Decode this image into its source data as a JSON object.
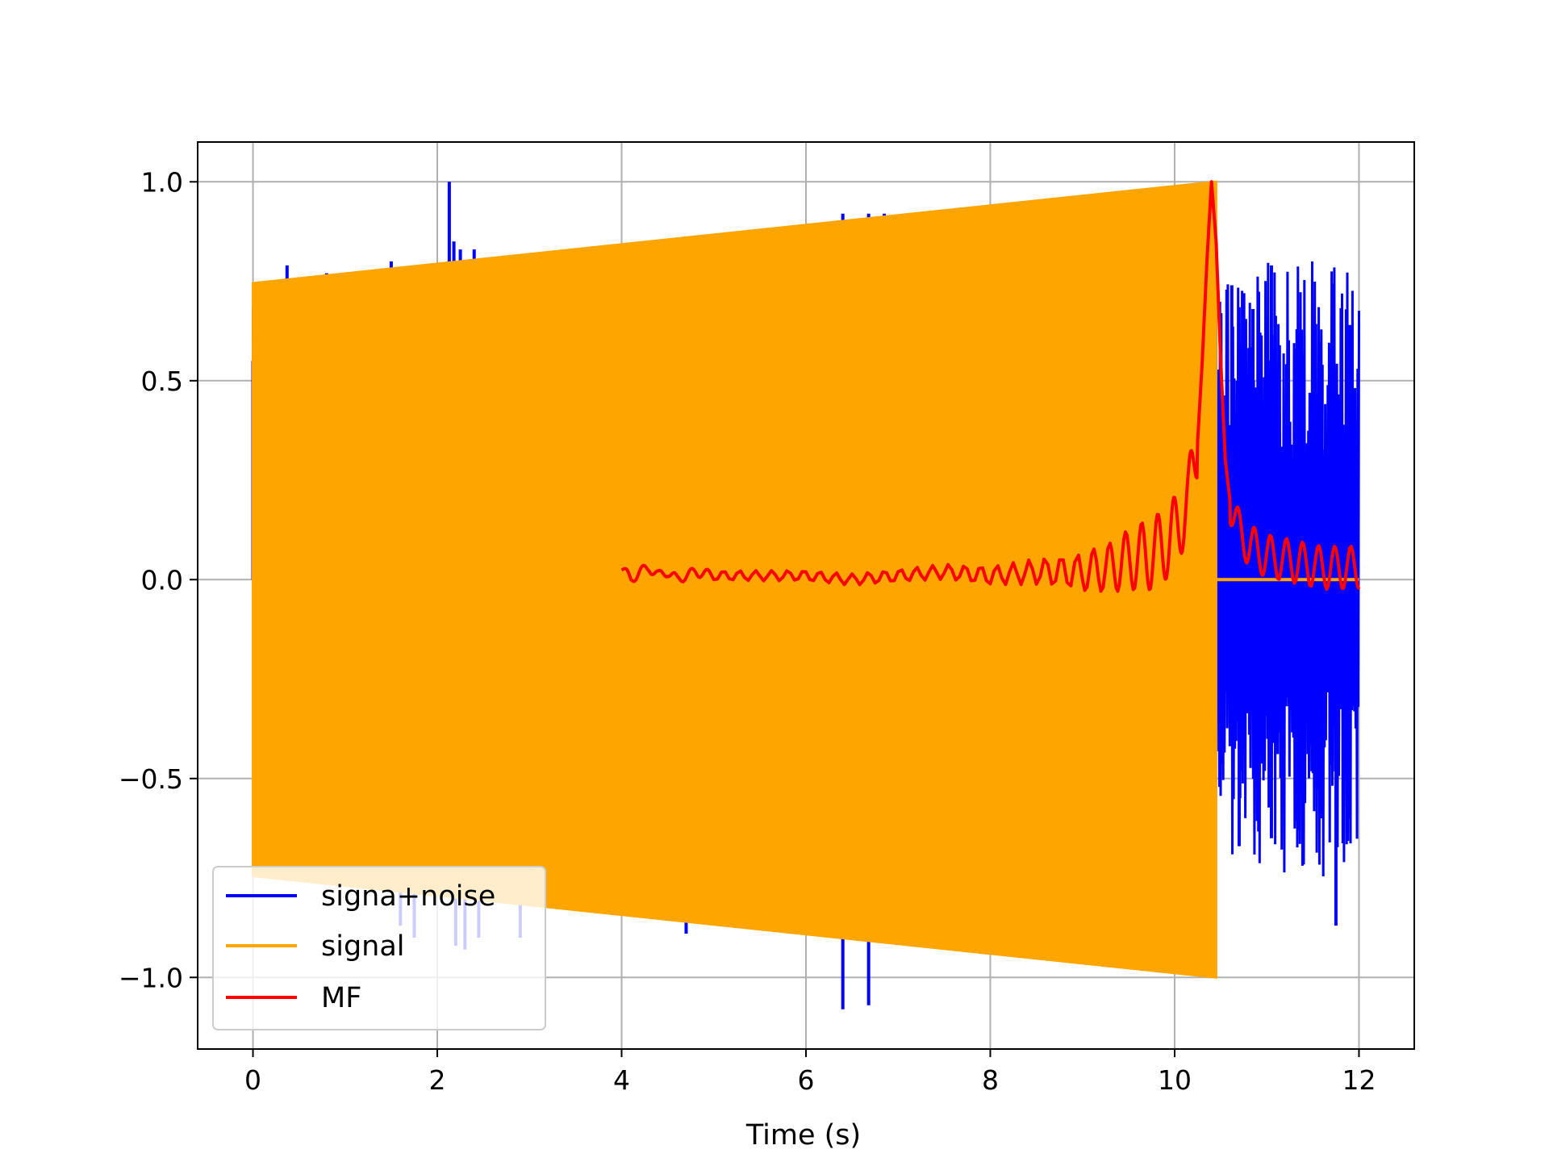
{
  "chart_data": {
    "type": "line",
    "title": "",
    "xlabel": "Time (s)",
    "ylabel": "",
    "xlim": [
      -0.6,
      12.6
    ],
    "ylim": [
      -1.18,
      1.1
    ],
    "x_ticks": [
      0,
      2,
      4,
      6,
      8,
      10,
      12
    ],
    "x_tick_labels": [
      "0",
      "2",
      "4",
      "6",
      "8",
      "10",
      "12"
    ],
    "y_ticks": [
      1.0,
      0.5,
      0.0,
      -0.5,
      -1.0
    ],
    "y_tick_labels": [
      "1.0",
      "0.5",
      "0.0",
      "−0.5",
      "−1.0"
    ],
    "grid": true,
    "legend": "lower-left",
    "series": [
      {
        "name": "signa+noise",
        "color": "#0000ff",
        "segments": [
          {
            "x": [
              0,
              10.45
            ],
            "ymin": -0.76,
            "ymax": 0.74
          },
          {
            "x": [
              10.45,
              12.0
            ],
            "ymin": -0.75,
            "ymax": 0.8
          }
        ],
        "spikes": [
          {
            "x": 0.0,
            "y": 0.55
          },
          {
            "x": 0.37,
            "y": 0.79
          },
          {
            "x": 0.5,
            "y": 0.76
          },
          {
            "x": 0.8,
            "y": 0.77
          },
          {
            "x": 1.5,
            "y": 0.8
          },
          {
            "x": 2.13,
            "y": 1.0
          },
          {
            "x": 2.18,
            "y": 0.85
          },
          {
            "x": 2.25,
            "y": 0.83
          },
          {
            "x": 2.4,
            "y": 0.83
          },
          {
            "x": 3.05,
            "y": 0.81
          },
          {
            "x": 6.4,
            "y": 0.92
          },
          {
            "x": 6.55,
            "y": 0.89
          },
          {
            "x": 6.68,
            "y": 0.92
          },
          {
            "x": 6.85,
            "y": 0.92
          },
          {
            "x": 7.4,
            "y": 0.9
          },
          {
            "x": 1.6,
            "y": -0.87
          },
          {
            "x": 1.75,
            "y": -0.9
          },
          {
            "x": 2.2,
            "y": -0.92
          },
          {
            "x": 2.3,
            "y": -0.93
          },
          {
            "x": 2.45,
            "y": -0.9
          },
          {
            "x": 2.9,
            "y": -0.9
          },
          {
            "x": 4.7,
            "y": -0.89
          },
          {
            "x": 6.4,
            "y": -1.08
          },
          {
            "x": 6.68,
            "y": -1.07
          },
          {
            "x": 7.95,
            "y": -0.9
          }
        ],
        "tail_spikes": [
          {
            "x": 10.62,
            "y": 0.74
          },
          {
            "x": 10.75,
            "y": 0.72
          },
          {
            "x": 10.85,
            "y": 0.68
          },
          {
            "x": 11.05,
            "y": 0.79
          },
          {
            "x": 11.3,
            "y": 0.58
          },
          {
            "x": 11.6,
            "y": 0.54
          },
          {
            "x": 11.9,
            "y": 0.64
          },
          {
            "x": 10.7,
            "y": -0.67
          },
          {
            "x": 11.05,
            "y": -0.65
          },
          {
            "x": 11.35,
            "y": -0.63
          },
          {
            "x": 11.6,
            "y": -0.6
          },
          {
            "x": 11.75,
            "y": -0.87
          },
          {
            "x": 11.9,
            "y": -0.6
          }
        ]
      },
      {
        "name": "signal",
        "color": "#ffa500",
        "envelope": {
          "x": [
            0,
            10.45
          ],
          "upper": [
            0.745,
            1.0
          ],
          "lower": [
            -0.745,
            -1.0
          ]
        },
        "after": {
          "x": [
            10.45,
            12.0
          ],
          "y": 0.0
        }
      },
      {
        "name": "MF",
        "color": "#ff0000",
        "x": [
          4.0,
          4.1,
          4.2,
          4.3,
          4.4,
          4.5,
          4.6,
          4.8,
          5.0,
          5.5,
          6.0,
          6.5,
          7.0,
          7.5,
          8.0,
          8.5,
          9.0,
          9.3,
          9.5,
          9.7,
          9.85,
          9.95,
          10.05,
          10.15,
          10.25,
          10.3,
          10.35,
          10.4,
          10.45,
          10.5,
          10.55,
          10.6,
          10.65,
          10.7,
          10.8,
          10.9,
          11.0,
          11.2,
          11.4,
          11.6,
          11.8,
          12.0
        ],
        "y": [
          0.03,
          0.0,
          0.02,
          0.03,
          0.01,
          0.02,
          0.0,
          0.02,
          0.01,
          0.01,
          0.01,
          0.0,
          0.01,
          0.02,
          0.01,
          0.02,
          0.02,
          0.03,
          0.05,
          0.06,
          0.08,
          0.1,
          0.14,
          0.2,
          0.35,
          0.55,
          0.8,
          1.0,
          0.85,
          0.55,
          0.3,
          0.2,
          0.15,
          0.12,
          0.09,
          0.07,
          0.06,
          0.05,
          0.04,
          0.03,
          0.03,
          0.03
        ]
      }
    ]
  }
}
